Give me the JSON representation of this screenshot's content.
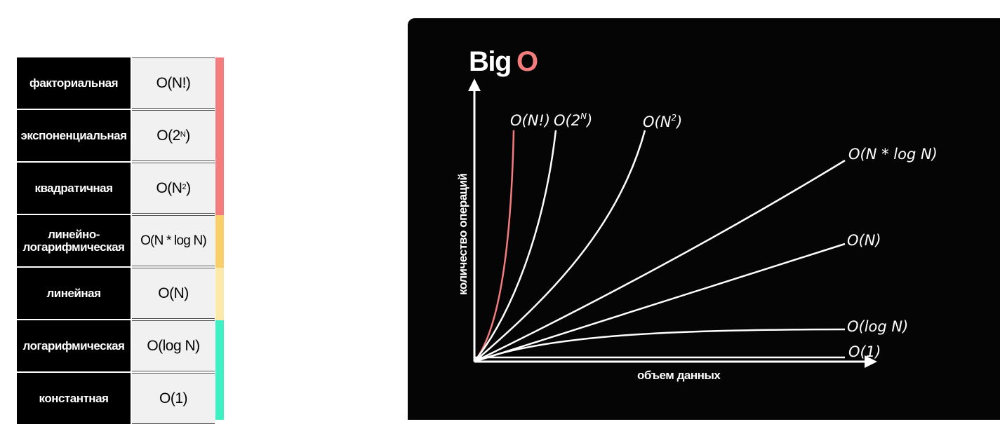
{
  "table": {
    "rows": [
      {
        "name": "факториальная",
        "notation": "O(N!)",
        "base": "",
        "sup": ""
      },
      {
        "name": "экспоненциальная",
        "notation": "",
        "base": "O(2",
        "sup": "N",
        "close": ")"
      },
      {
        "name": "квадратичная",
        "notation": "",
        "base": "O(N",
        "sup": "2",
        "close": ")"
      },
      {
        "name_line1": "линейно-",
        "name_line2": "логарифмическая",
        "notation": "O(N * log N)"
      },
      {
        "name": "линейная",
        "notation": "O(N)"
      },
      {
        "name": "логарифмическая",
        "notation": "O(log N)"
      },
      {
        "name": "константная",
        "notation": "O(1)"
      }
    ],
    "colors": {
      "red": "#f47c7c",
      "orange": "#f9cf6a",
      "yellow": "#fde9a8",
      "green": "#3ff0c4"
    }
  },
  "chart": {
    "title_word": "Big",
    "title_accent": "O",
    "accent_color": "#f47c7c",
    "ylabel": "количество операций",
    "xlabel": "объем данных",
    "labels": {
      "factorial": "O(N!)",
      "exp_base": "O(2",
      "exp_sup": "N",
      "exp_close": ")",
      "quad_base": "O(N",
      "quad_sup": "2",
      "quad_close": ")",
      "nlogn": "O(N * log N)",
      "linear": "O(N)",
      "log": "O(log N)",
      "const": "O(1)"
    }
  }
}
